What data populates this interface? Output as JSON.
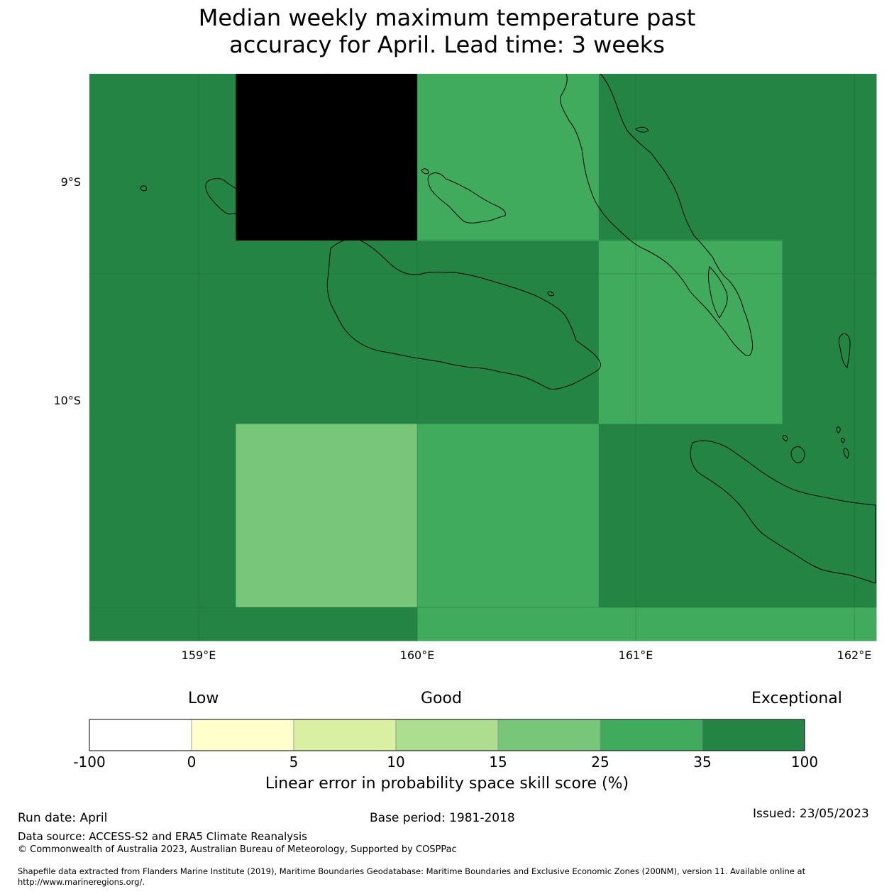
{
  "title_line1": "Median weekly maximum temperature past",
  "title_line2": "accuracy for April. Lead time: 3 weeks",
  "map": {
    "lat_labels": [
      "9°S",
      "10°S"
    ],
    "lon_labels": [
      "159°E",
      "160°E",
      "161°E",
      "162°E"
    ],
    "extent": {
      "lon_min": 158.5,
      "lon_max": 162.1,
      "lat_min": -10.1,
      "lat_max": -8.4
    },
    "grid_cells": [
      {
        "lon": [
          158.5,
          159.17
        ],
        "lat": [
          -8.9,
          -8.4
        ],
        "category": 6
      },
      {
        "lon": [
          159.17,
          160.0
        ],
        "lat": [
          -8.9,
          -8.4
        ],
        "category": 7
      },
      {
        "lon": [
          160.0,
          160.83
        ],
        "lat": [
          -8.9,
          -8.4
        ],
        "category": 5
      },
      {
        "lon": [
          160.83,
          162.1
        ],
        "lat": [
          -8.9,
          -8.4
        ],
        "category": 6
      },
      {
        "lon": [
          158.5,
          160.83
        ],
        "lat": [
          -9.45,
          -8.9
        ],
        "category": 6
      },
      {
        "lon": [
          160.83,
          161.67
        ],
        "lat": [
          -9.45,
          -8.9
        ],
        "category": 5
      },
      {
        "lon": [
          161.67,
          162.1
        ],
        "lat": [
          -9.45,
          -8.9
        ],
        "category": 6
      },
      {
        "lon": [
          158.5,
          159.17
        ],
        "lat": [
          -10.0,
          -9.45
        ],
        "category": 6
      },
      {
        "lon": [
          159.17,
          160.0
        ],
        "lat": [
          -10.0,
          -9.45
        ],
        "category": 4
      },
      {
        "lon": [
          160.0,
          160.83
        ],
        "lat": [
          -10.0,
          -9.45
        ],
        "category": 5
      },
      {
        "lon": [
          160.83,
          162.1
        ],
        "lat": [
          -10.0,
          -9.45
        ],
        "category": 6
      },
      {
        "lon": [
          158.5,
          160.0
        ],
        "lat": [
          -10.1,
          -10.0
        ],
        "category": 6
      },
      {
        "lon": [
          160.0,
          162.1
        ],
        "lat": [
          -10.1,
          -10.0
        ],
        "category": 5
      }
    ]
  },
  "colorbar": {
    "categories": [
      "Low",
      "Good",
      "Exceptional"
    ],
    "ticks": [
      "-100",
      "0",
      "5",
      "10",
      "15",
      "25",
      "35",
      "100"
    ],
    "colors": [
      "#ffffff",
      "#ffffcc",
      "#d9f0a3",
      "#addd8e",
      "#78c679",
      "#41ab5d",
      "#238443"
    ],
    "label": "Linear error in probability space skill score (%)"
  },
  "footer": {
    "run_date": "Run date: April",
    "base_period": "Base period: 1981-2018",
    "issued": "Issued: 23/05/2023",
    "data_source": "Data source: ACCESS-S2 and ERA5 Climate Reanalysis",
    "copyright": "© Commonwealth of Australia 2023, Australian Bureau of Meteorology, Supported by COSPPac",
    "shapefile_line1": "Shapefile data extracted from Flanders Marine Institute (2019), Maritime Boundaries Geodatabase: Maritime Boundaries and Exclusive Economic Zones (200NM), version 11. Available online at",
    "shapefile_line2": "http://www.marineregions.org/."
  }
}
